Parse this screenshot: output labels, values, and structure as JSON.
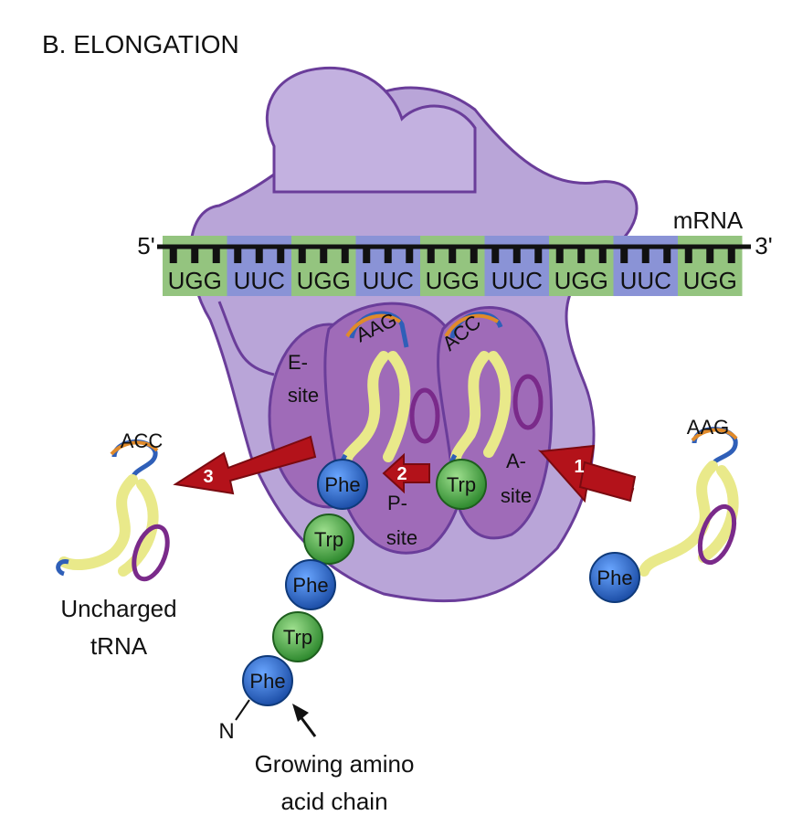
{
  "title": "B. ELONGATION",
  "mrna": {
    "label": "mRNA",
    "five_prime": "5'",
    "three_prime": "3'",
    "codons": [
      "UGG",
      "UUC",
      "UGG",
      "UUC",
      "UGG",
      "UUC",
      "UGG",
      "UUC",
      "UGG"
    ]
  },
  "sites": {
    "e_site": [
      "E-",
      "site"
    ],
    "p_site": [
      "P-",
      "site"
    ],
    "a_site": [
      "A-",
      "site"
    ]
  },
  "anticodons": {
    "e_site_trna": "AAG",
    "p_site_trna": "ACC",
    "incoming_trna": "AAG",
    "exiting_trna": "ACC"
  },
  "amino_acids": {
    "phe": "Phe",
    "trp": "Trp"
  },
  "chain": [
    "Phe",
    "Trp",
    "Phe",
    "Trp",
    "Phe"
  ],
  "steps": [
    "1",
    "2",
    "3"
  ],
  "labels": {
    "uncharged_line1": "Uncharged",
    "uncharged_line2": "tRNA",
    "n_terminus": "N",
    "growing_line1": "Growing amino",
    "growing_line2": "acid chain"
  },
  "colors": {
    "ribosome": "#b9a5d8",
    "ribosome_outline": "#6a3d9a",
    "site": "#9f6bb8",
    "mrna_green": "#94c47f",
    "mrna_blue": "#8a93d6",
    "phe": "#1f5fbf",
    "trp": "#3a9a3a",
    "arrow": "#b3121a",
    "trna_body": "#f4f2a8"
  }
}
